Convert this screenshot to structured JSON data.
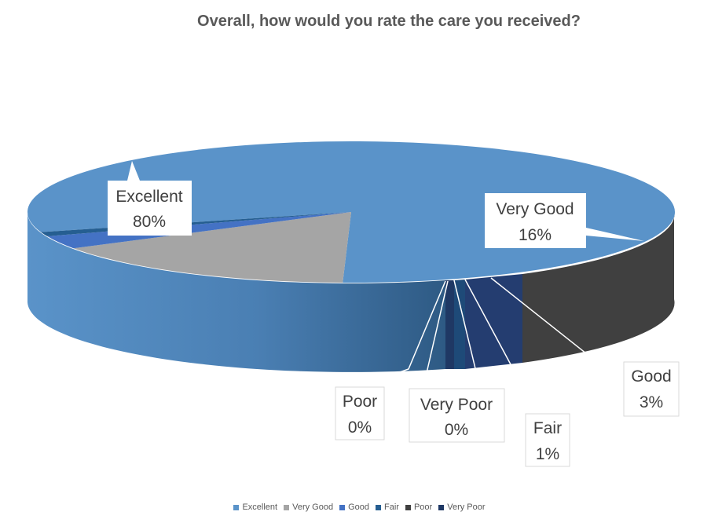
{
  "chart_data": {
    "type": "pie",
    "title": "Overall, how would you rate the care you received?",
    "categories": [
      "Excellent",
      "Very Good",
      "Good",
      "Fair",
      "Poor",
      "Very Poor"
    ],
    "values": [
      80,
      16,
      3,
      1,
      0,
      0
    ],
    "data_labels": [
      "80%",
      "16%",
      "3%",
      "1%",
      "0%",
      "0%"
    ],
    "colors": [
      "#5a93c9",
      "#a5a5a5",
      "#4472c4",
      "#255e91",
      "#404040",
      "#1f3864"
    ],
    "legend_position": "bottom",
    "style": "3d"
  }
}
